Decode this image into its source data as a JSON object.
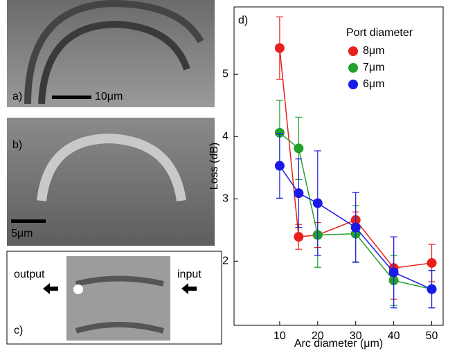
{
  "panels": {
    "a": {
      "label": "a)",
      "scale_bar": "10μm"
    },
    "b": {
      "label": "b)",
      "scale_bar": "5μm"
    },
    "c": {
      "label": "c)",
      "output": "output",
      "input": "input"
    },
    "d": {
      "label": "d)"
    }
  },
  "chart_data": {
    "type": "line",
    "x_label": "Arc diameter (μm)",
    "y_label": "Loss (dB)",
    "legend_title": "Port diameter",
    "x": [
      10,
      15,
      20,
      30,
      40,
      50
    ],
    "series": [
      {
        "name": "8μm",
        "color": "#e8201c",
        "values": [
          5.42,
          2.39,
          2.42,
          2.66,
          1.89,
          1.97
        ],
        "errors": [
          0.5,
          0.2,
          0.2,
          0.13,
          0.5,
          0.3
        ]
      },
      {
        "name": "7μm",
        "color": "#22a02c",
        "values": [
          4.06,
          3.81,
          2.42,
          2.44,
          1.69,
          1.55
        ],
        "errors": [
          0.52,
          0.5,
          0.52,
          0.45,
          0.4,
          0.3
        ]
      },
      {
        "name": "6μm",
        "color": "#1a1ae8",
        "values": [
          3.53,
          3.09,
          2.93,
          2.54,
          1.82,
          1.55
        ],
        "errors": [
          0.52,
          0.55,
          0.84,
          0.56,
          0.57,
          0.3
        ]
      }
    ],
    "xlim": [
      -2,
      53
    ],
    "ylim": [
      0.97,
      6.08
    ],
    "xticks": [
      10,
      20,
      30,
      40,
      50
    ],
    "yticks": [
      2,
      3,
      4,
      5
    ],
    "legend": "upper right"
  }
}
